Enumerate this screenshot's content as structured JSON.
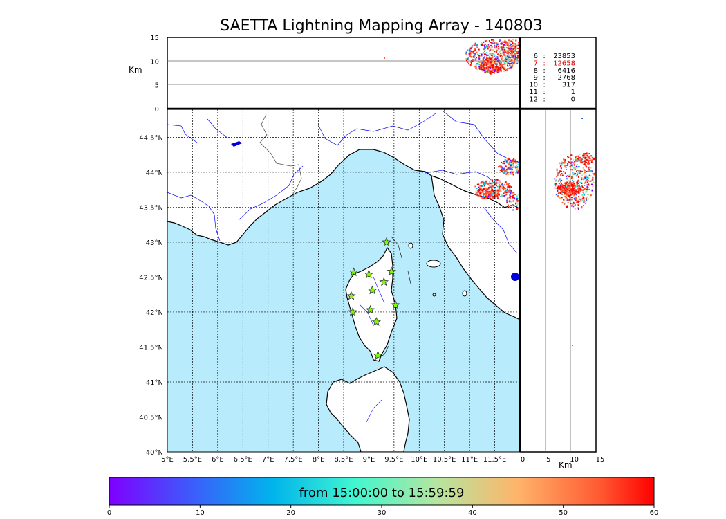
{
  "title": "SAETTA Lightning Mapping Array - 140803",
  "altitude_panel": {
    "axis_label": "Km",
    "ticks": [
      "0",
      "5",
      "10",
      "15"
    ]
  },
  "side_panel": {
    "axis_label": "Km",
    "ticks": [
      "0",
      "5",
      "10",
      "15"
    ]
  },
  "station_counts": [
    {
      "stations": "6",
      "sources": "23853",
      "color": "#000000"
    },
    {
      "stations": "7",
      "sources": "12658",
      "color": "#e00000"
    },
    {
      "stations": "8",
      "sources": "6416",
      "color": "#000000"
    },
    {
      "stations": "9",
      "sources": "2768",
      "color": "#000000"
    },
    {
      "stations": "10",
      "sources": "317",
      "color": "#000000"
    },
    {
      "stations": "11",
      "sources": "1",
      "color": "#000000"
    },
    {
      "stations": "12",
      "sources": "0",
      "color": "#000000"
    }
  ],
  "map": {
    "lon_ticks": [
      "5°E",
      "5.5°E",
      "6°E",
      "6.5°E",
      "7°E",
      "7.5°E",
      "8°E",
      "8.5°E",
      "9°E",
      "9.5°E",
      "10°E",
      "10.5°E",
      "11°E",
      "11.5°E"
    ],
    "lat_ticks": [
      "40°N",
      "40.5°N",
      "41°N",
      "41.5°N",
      "42°N",
      "42.5°N",
      "43°N",
      "43.5°N",
      "44°N",
      "44.5°N"
    ],
    "sea_color": "#b8ecfc",
    "land_color": "#ffffff",
    "river_color": "#0000ff",
    "station_color": "#7cfc00",
    "stations": [
      {
        "lon": 9.35,
        "lat": 43.0
      },
      {
        "lon": 8.7,
        "lat": 42.57
      },
      {
        "lon": 9.0,
        "lat": 42.54
      },
      {
        "lon": 9.45,
        "lat": 42.58
      },
      {
        "lon": 9.3,
        "lat": 42.43
      },
      {
        "lon": 9.07,
        "lat": 42.31
      },
      {
        "lon": 8.65,
        "lat": 42.23
      },
      {
        "lon": 9.53,
        "lat": 42.1
      },
      {
        "lon": 9.03,
        "lat": 42.03
      },
      {
        "lon": 8.68,
        "lat": 42.0
      },
      {
        "lon": 9.15,
        "lat": 41.86
      },
      {
        "lon": 9.18,
        "lat": 41.38
      }
    ]
  },
  "colorbar": {
    "label": "from 15:00:00 to 15:59:59",
    "ticks": [
      "0",
      "10",
      "20",
      "30",
      "40",
      "50",
      "60"
    ],
    "range": [
      0,
      60
    ],
    "colors": [
      "#7f00ff",
      "#3d5bfb",
      "#00b4ec",
      "#41f6d0",
      "#b4e6a0",
      "#ffb46a",
      "#ff5a32",
      "#ff0000"
    ]
  }
}
